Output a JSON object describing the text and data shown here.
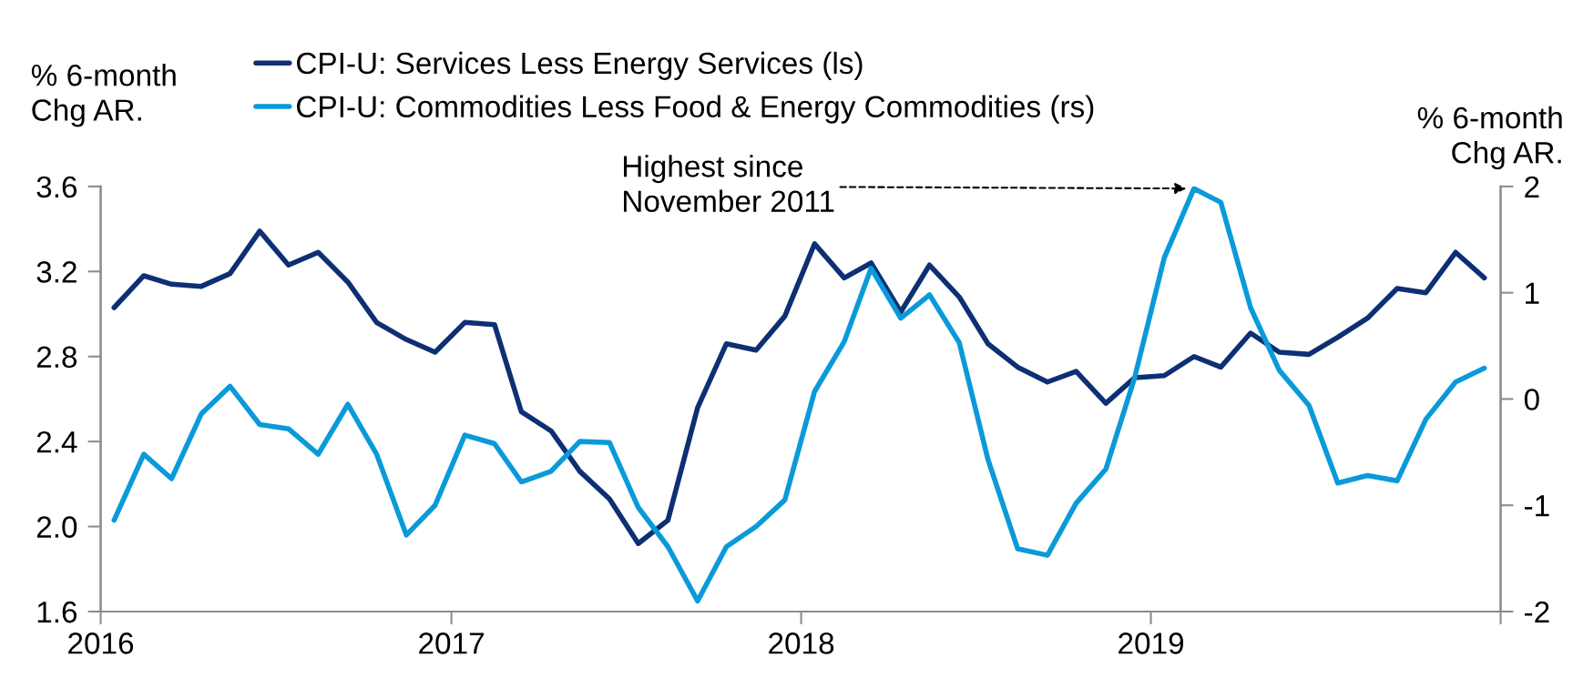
{
  "chart_data": {
    "type": "line",
    "x": [
      "2016-01-15",
      "2016-02-15",
      "2016-03-15",
      "2016-04-15",
      "2016-05-15",
      "2016-06-15",
      "2016-07-15",
      "2016-08-15",
      "2016-09-15",
      "2016-10-15",
      "2016-11-15",
      "2016-12-15",
      "2017-01-15",
      "2017-02-15",
      "2017-03-15",
      "2017-04-15",
      "2017-05-15",
      "2017-06-15",
      "2017-07-15",
      "2017-08-15",
      "2017-09-15",
      "2017-10-15",
      "2017-11-15",
      "2017-12-15",
      "2018-01-15",
      "2018-02-15",
      "2018-03-15",
      "2018-04-15",
      "2018-05-15",
      "2018-06-15",
      "2018-07-15",
      "2018-08-15",
      "2018-09-15",
      "2018-10-15",
      "2018-11-15",
      "2018-12-15",
      "2019-01-15",
      "2019-02-15",
      "2019-03-15",
      "2019-04-15",
      "2019-05-15",
      "2019-06-15",
      "2019-07-15",
      "2019-08-15",
      "2019-09-15",
      "2019-10-15",
      "2019-11-15",
      "2019-12-15"
    ],
    "series": [
      {
        "name": "CPI-U: Services Less Energy Services (ls)",
        "color": "#0d2f73",
        "values": [
          3.03,
          3.18,
          3.14,
          3.13,
          3.19,
          3.39,
          3.23,
          3.29,
          3.15,
          2.96,
          2.88,
          2.82,
          2.96,
          2.95,
          2.54,
          2.45,
          2.26,
          2.13,
          1.92,
          2.03,
          2.56,
          2.86,
          2.83,
          2.99,
          3.33,
          3.17,
          3.24,
          3.01,
          3.23,
          3.08,
          2.86,
          2.75,
          2.68,
          2.73,
          2.58,
          2.7,
          2.71,
          2.8,
          2.75,
          2.91,
          2.82,
          2.81,
          2.89,
          2.98,
          3.12,
          3.1,
          3.29,
          3.17
        ]
      },
      {
        "name": "CPI-U: Commodities Less Food & Energy Commodities (rs)",
        "color": "#0a9ad9",
        "axis": "y2",
        "values": [
          -1.14,
          -0.52,
          -0.75,
          -0.14,
          0.12,
          -0.24,
          -0.28,
          -0.52,
          -0.05,
          -0.52,
          -1.28,
          -1.0,
          -0.34,
          -0.42,
          -0.78,
          -0.68,
          -0.4,
          -0.41,
          -1.02,
          -1.39,
          -1.9,
          -1.39,
          -1.2,
          -0.95,
          0.07,
          0.54,
          1.23,
          0.76,
          0.98,
          0.53,
          -0.57,
          -1.41,
          -1.47,
          -0.98,
          -0.66,
          0.2,
          1.33,
          1.98,
          1.85,
          0.86,
          0.27,
          -0.06,
          -0.79,
          -0.72,
          -0.77,
          -0.19,
          0.16,
          0.29
        ]
      }
    ],
    "ylabel": "% 6-month\nChg AR.",
    "y2label": "% 6-month\nChg AR.",
    "xlim": [
      "2016-01-01",
      "2020-01-01"
    ],
    "xticks": [
      {
        "value": "2016-01-01",
        "label": "2016"
      },
      {
        "value": "2017-01-01",
        "label": "2017"
      },
      {
        "value": "2018-01-01",
        "label": "2018"
      },
      {
        "value": "2019-01-01",
        "label": "2019"
      },
      {
        "value": "2020-01-01",
        "label": null
      }
    ],
    "ylim": [
      1.6,
      3.6
    ],
    "yticks": [
      1.6,
      {
        "value": 2,
        "label": "2.0"
      },
      2.4,
      2.8,
      3.2,
      3.6
    ],
    "y2lim": [
      -2,
      2
    ],
    "y2ticks": [
      -2,
      -1,
      0,
      1,
      2
    ],
    "annotations": [
      "Highest since\nNovember 2011"
    ],
    "grid": false,
    "legend": "top",
    "marker": "none",
    "line_style": "solid"
  }
}
